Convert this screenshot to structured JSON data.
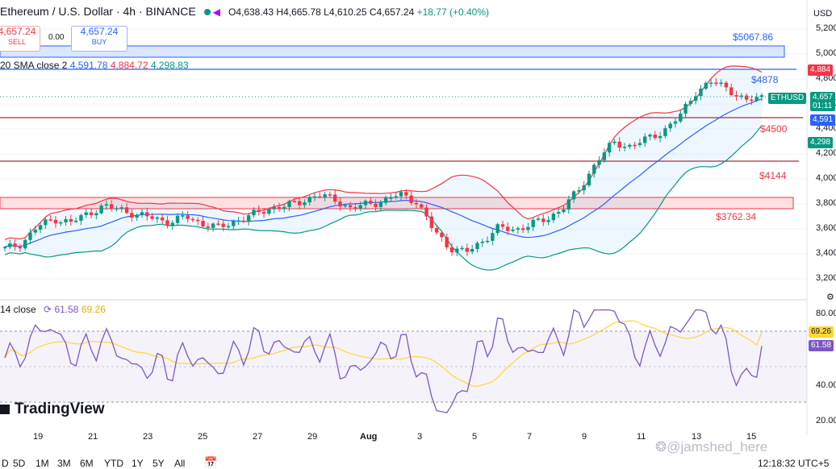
{
  "header": {
    "title": "Ethereum / U.S. Dollar · 4h · BINANCE",
    "open_label": "O",
    "open": "4,638.43",
    "high_label": "H",
    "high": "4,665.78",
    "low_label": "L",
    "low": "4,610.25",
    "close_label": "C",
    "close": "4,657.24",
    "change": "+18.77 (+0.40%)"
  },
  "trade": {
    "sell_price": "4,657.24",
    "sell_label": "SELL",
    "spread": "0.00",
    "buy_price": "4,657.24",
    "buy_label": "BUY"
  },
  "indicators": {
    "bb_legend": "20 SMA close 2",
    "bb_basis": "4,591.78",
    "bb_upper": "4,884.72",
    "bb_lower": "4,298.83",
    "rsi_legend": "14 close",
    "rsi_value": "61.58",
    "rsi_ma": "69.26"
  },
  "annotations": {
    "level_5067": "$5067.86",
    "level_4878": "$4878",
    "level_4500": "$4500",
    "level_4144": "$4144",
    "level_3762": "$3762.34"
  },
  "price_scale": {
    "currency": "USD",
    "labels": [
      "5,200",
      "5,000",
      "4,800",
      "4,600",
      "4,400",
      "4,200",
      "4,000",
      "3,800",
      "3,600",
      "3,400",
      "3,200"
    ],
    "tags": {
      "upper": "4,884",
      "symbol": "ETHUSD",
      "price": "4,657",
      "countdown": "01:11",
      "basis": "4,591",
      "lower": "4,298"
    }
  },
  "rsi_scale": {
    "labels": [
      "80.00",
      "40.00",
      "20.00"
    ],
    "ma_tag": "69.26",
    "value_tag": "61.58"
  },
  "time_axis": {
    "labels": [
      "19",
      "21",
      "23",
      "25",
      "27",
      "29",
      "Aug",
      "3",
      "5",
      "7",
      "9",
      "11",
      "13",
      "15"
    ]
  },
  "bottom_bar": {
    "ranges": [
      "D",
      "5D",
      "1M",
      "3M",
      "6M",
      "YTD",
      "1Y",
      "5Y",
      "All"
    ],
    "clock": "12:18:32 UTC+5"
  },
  "branding": {
    "logo_text": "TradingView",
    "watermark": "@jamshed_here"
  },
  "colors": {
    "up": "#089981",
    "down": "#f23645",
    "basis": "#2962ff",
    "band_upper": "#f23645",
    "band_lower": "#089981",
    "rsi": "#7e57c2",
    "rsi_ma": "#fdd835"
  },
  "chart_data": {
    "type": "candlestick",
    "symbol": "ETHUSD",
    "timeframe": "4h",
    "price_range": [
      3100,
      5250
    ],
    "x_labels": [
      "19",
      "21",
      "23",
      "25",
      "27",
      "29",
      "Aug",
      "3",
      "5",
      "7",
      "9",
      "11",
      "13",
      "15"
    ],
    "close_path": [
      3440,
      3480,
      3620,
      3680,
      3650,
      3720,
      3780,
      3760,
      3710,
      3690,
      3650,
      3700,
      3640,
      3610,
      3660,
      3710,
      3760,
      3780,
      3820,
      3870,
      3840,
      3760,
      3800,
      3820,
      3880,
      3820,
      3600,
      3450,
      3410,
      3500,
      3610,
      3590,
      3640,
      3680,
      3780,
      3930,
      4150,
      4290,
      4260,
      4320,
      4380,
      4500,
      4700,
      4780,
      4720,
      4620,
      4657
    ],
    "horizontal_levels": [
      5067.86,
      4878,
      4500,
      4144,
      3762.34
    ],
    "rsi_range": [
      20,
      85
    ],
    "rsi_last": 61.58,
    "rsi_ma_last": 69.26
  }
}
